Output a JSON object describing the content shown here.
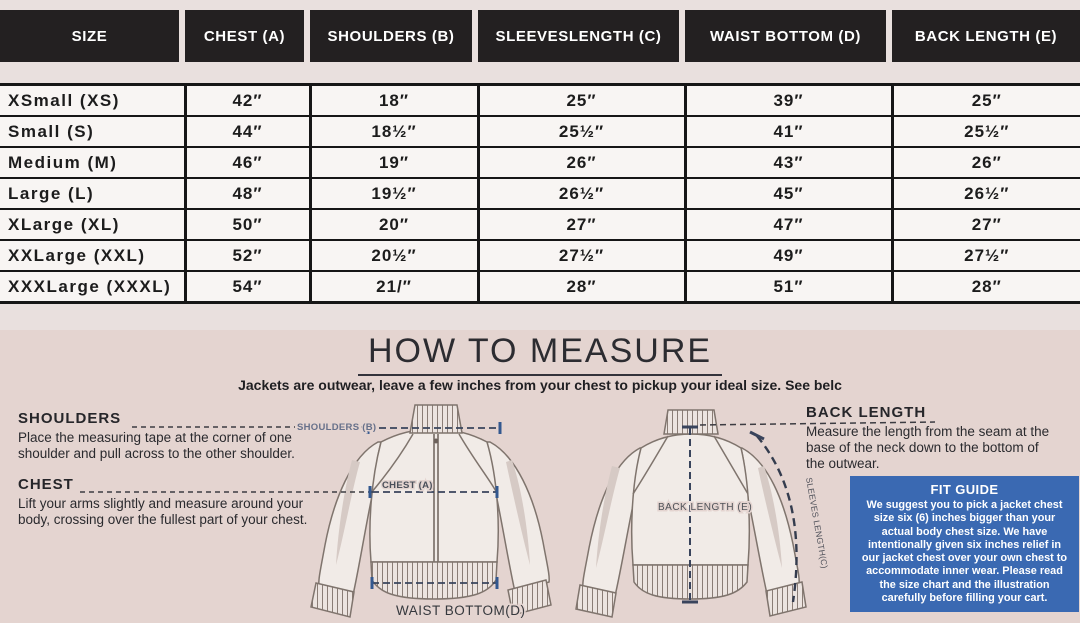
{
  "size_chart": {
    "columns": [
      "SIZE",
      "CHEST (A)",
      "SHOULDERS (B)",
      "SLEEVESLENGTH (C)",
      "WAIST BOTTOM (D)",
      "BACK LENGTH (E)"
    ],
    "rows": [
      {
        "size": "XSmall (XS)",
        "chest": "42″",
        "shoulders": "18″",
        "sleeves": "25″",
        "waist": "39″",
        "back": "25″"
      },
      {
        "size": "Small (S)",
        "chest": "44″",
        "shoulders": "18½″",
        "sleeves": "25½″",
        "waist": "41″",
        "back": "25½″"
      },
      {
        "size": "Medium (M)",
        "chest": "46″",
        "shoulders": "19″",
        "sleeves": "26″",
        "waist": "43″",
        "back": "26″"
      },
      {
        "size": "Large (L)",
        "chest": "48″",
        "shoulders": "19½″",
        "sleeves": "26½″",
        "waist": "45″",
        "back": "26½″"
      },
      {
        "size": "XLarge (XL)",
        "chest": "50″",
        "shoulders": "20″",
        "sleeves": "27″",
        "waist": "47″",
        "back": "27″"
      },
      {
        "size": "XXLarge (XXL)",
        "chest": "52″",
        "shoulders": "20½″",
        "sleeves": "27½″",
        "waist": "49″",
        "back": "27½″"
      },
      {
        "size": "XXXLarge (XXXL)",
        "chest": "54″",
        "shoulders": "21/″",
        "sleeves": "28″",
        "waist": "51″",
        "back": "28″"
      }
    ]
  },
  "how_to_measure": {
    "title": "HOW TO MEASURE",
    "subtitle": "Jackets are outwear, leave a few inches from your chest to pickup your ideal size. See belc",
    "shoulders": {
      "heading": "SHOULDERS",
      "text": "Place the measuring tape at the corner of one shoulder and pull across to the other shoulder."
    },
    "chest": {
      "heading": "CHEST",
      "text": "Lift your arms slightly and measure around your body, crossing over the fullest part of your chest."
    },
    "back_length": {
      "heading": "BACK LENGTH",
      "text": "Measure the length from the seam at the base of the neck down to the bottom of the outwear."
    },
    "fit_guide": {
      "heading": "FIT GUIDE",
      "text": "We suggest you to pick a jacket chest size six (6) inches bigger than your actual body chest size. We have intentionally given six inches relief in our jacket chest over your own chest to accommodate inner wear. Please read the size chart and the illustration carefully before filling your cart."
    },
    "diagram_labels": {
      "shoulders": "SHOULDERS (B)",
      "chest": "CHEST (A)",
      "waist": "WAIST BOTTOM(D)",
      "back": "BACK LENGTH (E)",
      "sleeves": "SLEEVES LENGTH(C)"
    }
  },
  "colors": {
    "header_bg": "#232021",
    "header_text": "#ffffff",
    "table_bg": "#f8f5f3",
    "top_bg": "#e9e0de",
    "bottom_bg": "#e4d4d0",
    "fit_guide_bg": "#3a69b2",
    "fit_guide_text": "#ffffff",
    "measure_line": "#39445c",
    "tick_mark": "#33588f"
  }
}
